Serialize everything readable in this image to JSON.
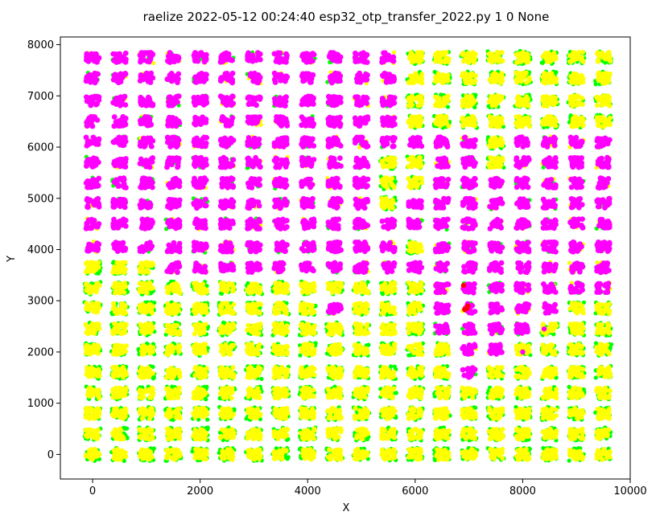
{
  "chart_data": {
    "type": "scatter",
    "title": "raelize 2022-05-12 00:24:40 esp32_otp_transfer_2022.py 1 0 None",
    "xlabel": "X",
    "ylabel": "Y",
    "xlim": [
      -600,
      10000
    ],
    "ylim": [
      -480,
      8150
    ],
    "xticks": [
      0,
      2000,
      4000,
      6000,
      8000,
      10000
    ],
    "yticks": [
      0,
      1000,
      2000,
      3000,
      4000,
      5000,
      6000,
      7000,
      8000
    ],
    "xtick_labels": [
      "0",
      "2000",
      "4000",
      "6000",
      "8000",
      "10000"
    ],
    "ytick_labels": [
      "0",
      "1000",
      "2000",
      "3000",
      "4000",
      "5000",
      "6000",
      "7000",
      "8000"
    ],
    "grid": false,
    "grid_spacing": 500,
    "grid_columns": 20,
    "grid_rows": 20,
    "colors": {
      "expected": "#ffff00",
      "reset": "#00ff00",
      "success": "#ff0000",
      "mute": "#ff00ff"
    },
    "row_y": [
      0,
      400,
      800,
      1200,
      1600,
      2050,
      2450,
      2850,
      3250,
      3650,
      4050,
      4500,
      4900,
      5300,
      5700,
      6100,
      6500,
      6900,
      7350,
      7750
    ],
    "magenta_rows": [
      "00000000000000000000",
      "00000000000000000000",
      "00000000000000000000",
      "00000000000000000000",
      "00000000000000100000",
      "00000000000000110000",
      "00000000000001111000",
      "00000000010001111100",
      "00000000000001111111",
      "00011111111111111111",
      "11111111111101111111",
      "11111111111111111111",
      "11111111111011111111",
      "11111111111001111111",
      "11111111111001101111",
      "11111111111111101111",
      "11111111111100000000",
      "11111111111100000000",
      "11111111111100000000",
      "11111111111100000000"
    ],
    "red_points": [
      {
        "x": 6900,
        "y": 3300
      },
      {
        "x": 6960,
        "y": 2850
      },
      {
        "x": 6980,
        "y": 2900
      },
      {
        "x": 6920,
        "y": 2830
      }
    ],
    "extra_points": [
      {
        "x": 8000,
        "y": 2000,
        "color": "#ff00ff"
      },
      {
        "x": 8400,
        "y": 2450,
        "color": "#ff00ff"
      }
    ]
  }
}
